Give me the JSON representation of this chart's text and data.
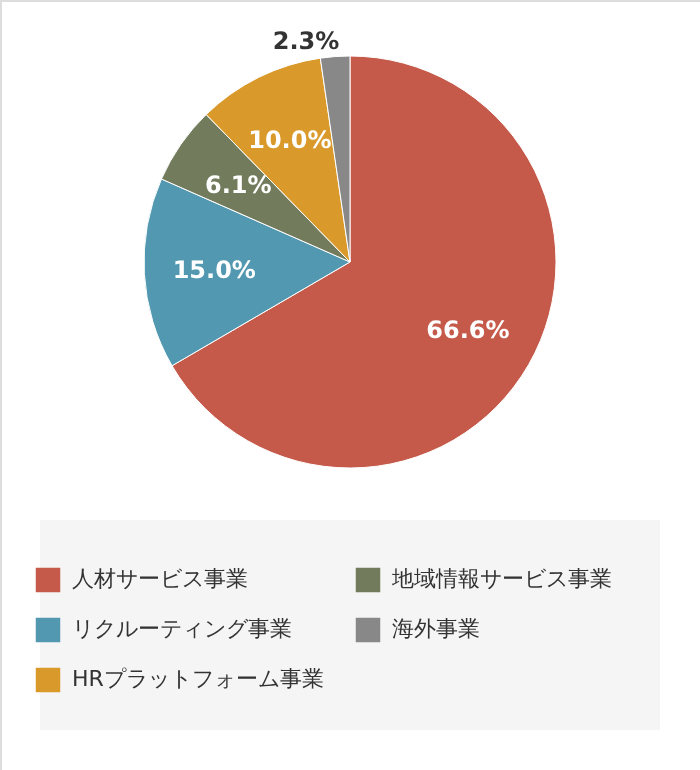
{
  "chart_data": {
    "type": "pie",
    "categories": [
      "人材サービス事業",
      "リクルーティング事業",
      "地域情報サービス事業",
      "HRプラットフォーム事業",
      "海外事業"
    ],
    "values": [
      66.6,
      15.0,
      6.1,
      10.0,
      2.3
    ],
    "colors": [
      "#c55a4a",
      "#5298b0",
      "#727c5c",
      "#d99a2b",
      "#888888"
    ],
    "value_labels": [
      "66.6%",
      "15.0%",
      "6.1%",
      "10.0%",
      "2.3%"
    ],
    "legend": "bottom"
  }
}
